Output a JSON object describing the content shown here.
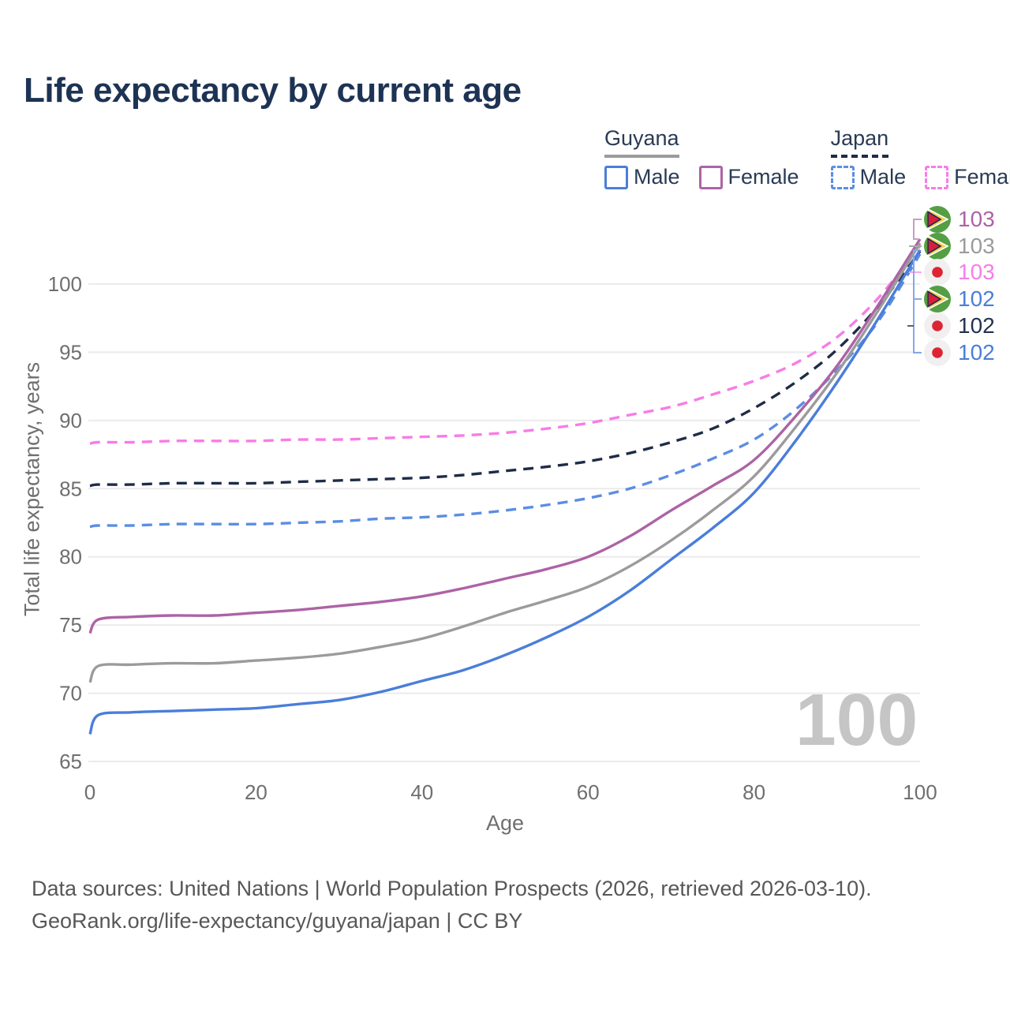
{
  "title": "Life expectancy by current age",
  "legend": {
    "guyana": {
      "label": "Guyana",
      "male": "Male",
      "female": "Female"
    },
    "japan": {
      "label": "Japan",
      "male": "Male",
      "female": "Female"
    }
  },
  "chart_data": {
    "type": "line",
    "title": "Life expectancy by current age",
    "xlabel": "Age",
    "ylabel": "Total life expectancy, years",
    "xlim": [
      0,
      100
    ],
    "ylim": [
      65,
      103.5
    ],
    "xticks": [
      0,
      20,
      40,
      60,
      80,
      100
    ],
    "yticks": [
      65,
      70,
      75,
      80,
      85,
      90,
      95,
      100
    ],
    "grid": "horizontal-only",
    "legend_position": "top-right",
    "x": [
      0,
      1,
      5,
      10,
      15,
      20,
      25,
      30,
      35,
      40,
      45,
      50,
      55,
      60,
      65,
      70,
      75,
      80,
      85,
      90,
      95,
      100
    ],
    "series": [
      {
        "name": "Japan Female",
        "country": "Japan",
        "sex": "Female",
        "style": "dashed",
        "color": "#f87ce6",
        "values": [
          88.3,
          88.4,
          88.4,
          88.5,
          88.5,
          88.5,
          88.6,
          88.6,
          88.7,
          88.8,
          88.9,
          89.1,
          89.4,
          89.8,
          90.4,
          91.0,
          91.9,
          92.9,
          94.2,
          96.1,
          99.0,
          102.8
        ]
      },
      {
        "name": "Japan",
        "country": "Japan",
        "sex": "Both",
        "style": "dashed",
        "color": "#1e2c47",
        "values": [
          85.2,
          85.3,
          85.3,
          85.4,
          85.4,
          85.4,
          85.5,
          85.6,
          85.7,
          85.8,
          86.0,
          86.3,
          86.6,
          87.0,
          87.6,
          88.4,
          89.4,
          90.9,
          92.8,
          95.2,
          98.4,
          102.4
        ]
      },
      {
        "name": "Japan Male",
        "country": "Japan",
        "sex": "Male",
        "style": "dashed",
        "color": "#5c8de2",
        "values": [
          82.2,
          82.3,
          82.3,
          82.4,
          82.4,
          82.4,
          82.5,
          82.6,
          82.8,
          82.9,
          83.1,
          83.4,
          83.8,
          84.3,
          85.0,
          86.0,
          87.2,
          88.6,
          90.8,
          93.7,
          97.3,
          102.2
        ]
      },
      {
        "name": "Guyana Female",
        "country": "Guyana",
        "sex": "Female",
        "style": "solid",
        "color": "#ad63a5",
        "values": [
          74.4,
          75.4,
          75.6,
          75.7,
          75.7,
          75.9,
          76.1,
          76.4,
          76.7,
          77.1,
          77.7,
          78.4,
          79.1,
          80.0,
          81.5,
          83.4,
          85.2,
          87.1,
          90.3,
          94.0,
          98.5,
          103.3
        ]
      },
      {
        "name": "Guyana",
        "country": "Guyana",
        "sex": "Both",
        "style": "solid",
        "color": "#9b9b9b",
        "values": [
          70.8,
          72.0,
          72.1,
          72.2,
          72.2,
          72.4,
          72.6,
          72.9,
          73.4,
          74.0,
          74.9,
          75.9,
          76.8,
          77.8,
          79.3,
          81.2,
          83.4,
          85.9,
          89.5,
          93.5,
          98.1,
          103.0
        ]
      },
      {
        "name": "Guyana Male",
        "country": "Guyana",
        "sex": "Male",
        "style": "solid",
        "color": "#4a7ed9",
        "values": [
          67.0,
          68.4,
          68.6,
          68.7,
          68.8,
          68.9,
          69.2,
          69.5,
          70.1,
          70.9,
          71.7,
          72.8,
          74.1,
          75.6,
          77.5,
          79.8,
          82.1,
          84.7,
          88.5,
          92.8,
          97.5,
          102.5
        ]
      }
    ]
  },
  "end_labels": [
    {
      "flag": "guyana",
      "value": "103",
      "color": "#ad63a5"
    },
    {
      "flag": "guyana",
      "value": "103",
      "color": "#9b9b9b"
    },
    {
      "flag": "japan",
      "value": "103",
      "color": "#f87ce6"
    },
    {
      "flag": "guyana",
      "value": "102",
      "color": "#4a7ed9"
    },
    {
      "flag": "japan",
      "value": "102",
      "color": "#22334e"
    },
    {
      "flag": "japan",
      "value": "102",
      "color": "#4a7ed9"
    }
  ],
  "watermark": "100",
  "footer": {
    "line1": "Data sources: United Nations | World Population Prospects (2026, retrieved 2026-03-10).",
    "line2": "GeoRank.org/life-expectancy/guyana/japan | CC BY"
  },
  "colors": {
    "title": "#1d3354",
    "legend_text": "#2a3b55",
    "axis_text": "#6f6f6f",
    "gridline": "#ebebeb",
    "watermark": "#c5c5c5",
    "footer_text": "#575757",
    "guyana_flag_green": "#549f44",
    "guyana_flag_yellow": "#f6cf4f",
    "guyana_flag_red": "#d6203a",
    "japan_flag_red": "#dc2432",
    "japan_flag_bg": "#f1eff0"
  }
}
